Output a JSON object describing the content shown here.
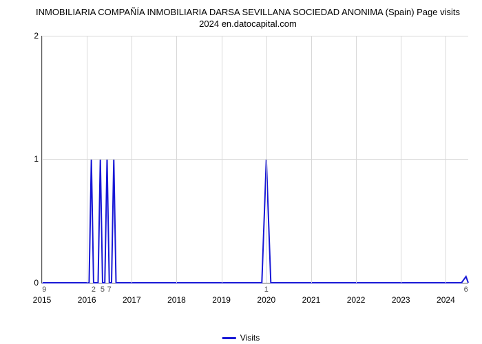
{
  "title": "INMOBILIARIA  COMPAÑÍA INMOBILIARIA DARSA SEVILLANA SOCIEDAD ANONIMA (Spain) Page visits 2024 en.datocapital.com",
  "chart": {
    "type": "line",
    "x_range": [
      2015,
      2024.5
    ],
    "y_range": [
      0,
      2
    ],
    "x_ticks": [
      2015,
      2016,
      2017,
      2018,
      2019,
      2020,
      2021,
      2022,
      2023,
      2024
    ],
    "y_ticks": [
      0,
      1,
      2
    ],
    "x_annotations": [
      {
        "x": 2015.05,
        "label": "9"
      },
      {
        "x": 2016.15,
        "label": "2"
      },
      {
        "x": 2016.35,
        "label": "5"
      },
      {
        "x": 2016.5,
        "label": "7"
      },
      {
        "x": 2020.0,
        "label": "1"
      },
      {
        "x": 2024.45,
        "label": "6"
      }
    ],
    "series": {
      "name": "Visits",
      "color": "#1818d6",
      "line_width": 2,
      "points": [
        [
          2015.0,
          0
        ],
        [
          2016.05,
          0
        ],
        [
          2016.1,
          1
        ],
        [
          2016.15,
          0
        ],
        [
          2016.25,
          0
        ],
        [
          2016.3,
          1
        ],
        [
          2016.35,
          0
        ],
        [
          2016.4,
          0
        ],
        [
          2016.45,
          1
        ],
        [
          2016.5,
          0
        ],
        [
          2016.55,
          0
        ],
        [
          2016.6,
          1
        ],
        [
          2016.65,
          0
        ],
        [
          2019.9,
          0
        ],
        [
          2020.0,
          1
        ],
        [
          2020.1,
          0
        ],
        [
          2024.35,
          0
        ],
        [
          2024.45,
          0.05
        ],
        [
          2024.5,
          0
        ]
      ]
    },
    "grid_color": "#d8d8d8",
    "axis_color": "#555555",
    "background_color": "#ffffff",
    "tick_fontsize": 12,
    "title_fontsize": 13
  },
  "legend_label": "Visits"
}
